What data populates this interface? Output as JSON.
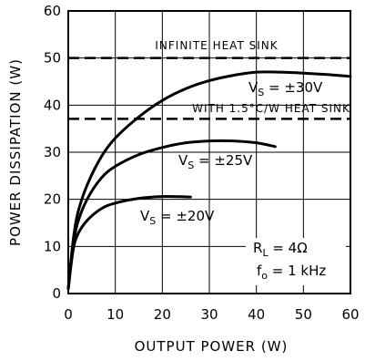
{
  "chart_data": {
    "type": "line",
    "xlabel": "OUTPUT POWER (W)",
    "ylabel": "POWER DISSIPATION (W)",
    "xlim": [
      0,
      60
    ],
    "ylim": [
      0,
      60
    ],
    "xticks": [
      "0",
      "10",
      "20",
      "30",
      "40",
      "50",
      "60"
    ],
    "yticks": [
      "0",
      "10",
      "20",
      "30",
      "40",
      "50",
      "60"
    ],
    "grid": true,
    "series": [
      {
        "var": "V",
        "sub": "S",
        "value": " = ±30V",
        "x": [
          0,
          1,
          2,
          4,
          7,
          10,
          15,
          20,
          25,
          30,
          35,
          40,
          45,
          50,
          55,
          60
        ],
        "y": [
          1,
          11,
          17,
          23,
          29,
          33,
          37.5,
          41,
          43.5,
          45.2,
          46.3,
          47,
          47,
          46.8,
          46.5,
          46.1
        ]
      },
      {
        "var": "V",
        "sub": "S",
        "value": " = ±25V",
        "x": [
          0,
          1,
          2,
          4,
          7,
          10,
          15,
          20,
          25,
          30,
          35,
          40,
          44
        ],
        "y": [
          1,
          10,
          15,
          20,
          24.5,
          27,
          29.5,
          31,
          32,
          32.4,
          32.4,
          32,
          31.2
        ]
      },
      {
        "var": "V",
        "sub": "S",
        "value": " = ±20V",
        "x": [
          0,
          1,
          2,
          4,
          7,
          10,
          15,
          20,
          26
        ],
        "y": [
          1,
          9,
          12.5,
          15.5,
          18,
          19.2,
          20.2,
          20.6,
          20.5
        ]
      }
    ],
    "reference_lines": [
      {
        "label": "INFINITE HEAT SINK",
        "y": 50
      },
      {
        "label": "WITH 1.5°C/W HEAT SINK",
        "y": 37.1
      }
    ],
    "parameters": [
      {
        "var": "R",
        "sub": "L",
        "value": " = 4Ω"
      },
      {
        "var": "f",
        "sub": "o",
        "value": " = 1 kHz"
      }
    ]
  }
}
